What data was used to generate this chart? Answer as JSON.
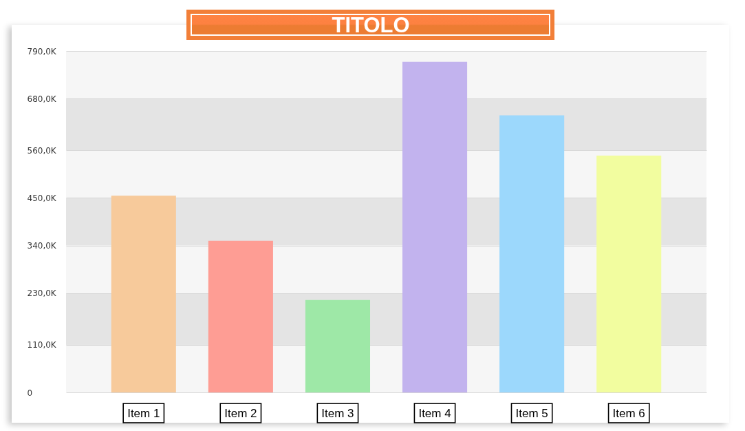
{
  "chart_data": {
    "type": "bar",
    "title": "TITOLO",
    "categories": [
      "Item 1",
      "Item 2",
      "Item 3",
      "Item 4",
      "Item 5",
      "Item 6"
    ],
    "values": [
      455000,
      351000,
      214000,
      765000,
      641000,
      548000
    ],
    "colors": [
      "#f7ca9b",
      "#fe9d94",
      "#9ee8a7",
      "#c2b3ee",
      "#9cd8fc",
      "#f2fd9f"
    ],
    "ylim": [
      0,
      790000
    ],
    "yticks": [
      0,
      {
        "value": 110000,
        "label": "110,0K"
      },
      {
        "value": 230000,
        "label": "230,0K"
      },
      {
        "value": 340000,
        "label": "340,0K"
      },
      {
        "value": 450000,
        "label": "450,0K"
      },
      {
        "value": 560000,
        "label": "560,0K"
      },
      {
        "value": 680000,
        "label": "680,0K"
      },
      {
        "value": 790000,
        "label": "790,0K"
      }
    ],
    "grid": "y"
  }
}
